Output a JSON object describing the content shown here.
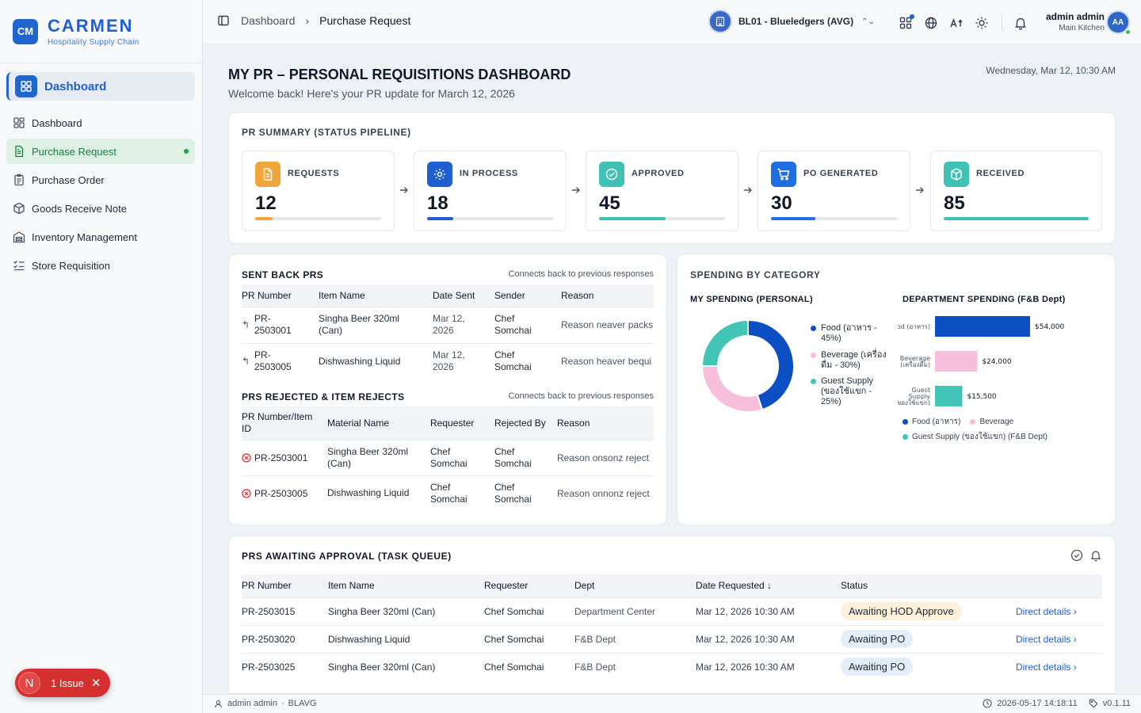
{
  "brand": {
    "logo_text": "CM",
    "name": "CARMEN",
    "subtitle": "Hospitality Supply Chain"
  },
  "sidebar": {
    "section_label": "Dashboard",
    "items": [
      {
        "label": "Dashboard",
        "icon": "grid-icon"
      },
      {
        "label": "Purchase Request",
        "icon": "document-icon",
        "active": true
      },
      {
        "label": "Purchase Order",
        "icon": "clipboard-icon"
      },
      {
        "label": "Goods Receive Note",
        "icon": "package-icon"
      },
      {
        "label": "Inventory Management",
        "icon": "warehouse-icon"
      },
      {
        "label": "Store Requisition",
        "icon": "checklist-icon"
      }
    ]
  },
  "issue_badge": {
    "initial": "N",
    "label": "1 Issue"
  },
  "topbar": {
    "breadcrumb": [
      "Dashboard",
      "Purchase Request"
    ],
    "business_unit": "BL01 - Blueledgers (AVG)",
    "user_name": "admin admin",
    "user_location": "Main Kitchen",
    "avatar_initials": "AA"
  },
  "header": {
    "title": "MY PR – PERSONAL REQUISITIONS DASHBOARD",
    "subtitle": "Welcome back! Here's your PR update for March 12, 2026",
    "datetime": "Wednesday, Mar 12, 10:30 AM"
  },
  "pipeline": {
    "title": "PR SUMMARY (STATUS PIPELINE)",
    "stages": [
      {
        "label": "REQUESTS",
        "value": "12",
        "progress": 0.14,
        "color": "#f0a63a",
        "icon": "document-icon"
      },
      {
        "label": "IN PROCESS",
        "value": "18",
        "progress": 0.21,
        "color": "#1f5fcf",
        "icon": "gear-icon"
      },
      {
        "label": "APPROVED",
        "value": "45",
        "progress": 0.53,
        "color": "#3fc2b5",
        "icon": "check-circle-icon"
      },
      {
        "label": "PO GENERATED",
        "value": "30",
        "progress": 0.35,
        "color": "#1f6fe0",
        "icon": "cart-icon"
      },
      {
        "label": "RECEIVED",
        "value": "85",
        "progress": 1.0,
        "color": "#3fc2b5",
        "icon": "box-icon"
      }
    ]
  },
  "sent_back": {
    "title": "SENT BACK PRS",
    "note": "Connects back to previous responses",
    "columns": [
      "PR Number",
      "Item Name",
      "Date Sent",
      "Sender",
      "Reason"
    ],
    "rows": [
      {
        "pr": "PR-\n2503001",
        "item": "Singha Beer 320ml\n(Can)",
        "date": "Mar 12,\n2026",
        "sender": "Chef\nSomchai",
        "reason": "Reason neaver packs"
      },
      {
        "pr": "PR-\n2503005",
        "item": "Dishwashing Liquid",
        "date": "Mar 12,\n2026",
        "sender": "Chef\nSomchai",
        "reason": "Reason heaver bequi"
      }
    ]
  },
  "rejected": {
    "title": "PRS REJECTED & ITEM REJECTS",
    "note": "Connects back to previous responses",
    "columns": [
      "PR Number/Item\nID",
      "Material Name",
      "Requester",
      "Rejected By",
      "Reason"
    ],
    "rows": [
      {
        "pr": "PR-2503001",
        "item": "Singha Beer 320ml\n(Can)",
        "requester": "Chef\nSomchai",
        "rejected_by": "Chef\nSomchai",
        "reason": "Reason onsonz reject"
      },
      {
        "pr": "PR-2503005",
        "item": "Dishwashing Liquid",
        "requester": "Chef\nSomchai",
        "rejected_by": "Chef\nSomchai",
        "reason": "Reason onnonz reject"
      }
    ]
  },
  "spending": {
    "title": "SPENDING BY CATEGORY",
    "personal_title": "MY SPENDING (PERSONAL)",
    "department_title": "DEPARTMENT SPENDING (F&B Dept)",
    "bar_legend": [
      "Food (อาหาร)",
      "Beverage",
      "Guest Supply (ของใช้แขก) (F&B Dept)"
    ]
  },
  "chart_data": [
    {
      "type": "pie",
      "title": "MY SPENDING (PERSONAL)",
      "labels": [
        "Food (อาหาร - 45%)",
        "Beverage (เครื่องดื่ม - 30%)",
        "Guest Supply (ของใช้แขก - 25%)"
      ],
      "values": [
        45,
        30,
        25
      ],
      "colors": [
        "#0b4fc3",
        "#f8bfdc",
        "#42c4b6"
      ],
      "legend": "right"
    },
    {
      "type": "bar",
      "orientation": "horizontal",
      "title": "DEPARTMENT SPENDING (F&B Dept)",
      "categories": [
        "Food (อาหาร)",
        "Beverage\n(เครื่องดื่ม)",
        "Guest\nSupply\n(ของใช้แขก)"
      ],
      "values": [
        54000,
        24000,
        15500
      ],
      "value_labels": [
        "$54,000",
        "$24,000",
        "$15,500"
      ],
      "colors": [
        "#0b4fc3",
        "#f8bfdc",
        "#42c4b6"
      ],
      "xlim": [
        0,
        54000
      ],
      "legend": "bottom"
    }
  ],
  "awaiting": {
    "title": "PRS AWAITING APPROVAL (TASK QUEUE)",
    "columns": [
      "PR Number",
      "Item Name",
      "Requester",
      "Dept",
      "Date Requested ↓",
      "Status"
    ],
    "rows": [
      {
        "pr": "PR-2503015",
        "item": "Singha Beer 320ml (Can)",
        "requester": "Chef Somchai",
        "dept": "Department Center",
        "date": "Mar 12, 2026 10:30 AM",
        "status": "Awaiting HOD Approve",
        "status_type": "hod",
        "link": "Direct details"
      },
      {
        "pr": "PR-2503020",
        "item": "Dishwashing Liquid",
        "requester": "Chef Somchai",
        "dept": "F&B Dept",
        "date": "Mar 12, 2026 10:30 AM",
        "status": "Awaiting PO",
        "status_type": "po",
        "link": "Direct details"
      },
      {
        "pr": "PR-2503025",
        "item": "Singha Beer 320ml (Can)",
        "requester": "Chef Somchai",
        "dept": "F&B Dept",
        "date": "Mar 12, 2026 10:30 AM",
        "status": "Awaiting PO",
        "status_type": "po",
        "link": "Direct details"
      }
    ]
  },
  "footer": {
    "user": "admin admin",
    "bu_code": "BLAVG",
    "timestamp": "2026-05-17 14:18:11",
    "version": "v0.1.11"
  }
}
